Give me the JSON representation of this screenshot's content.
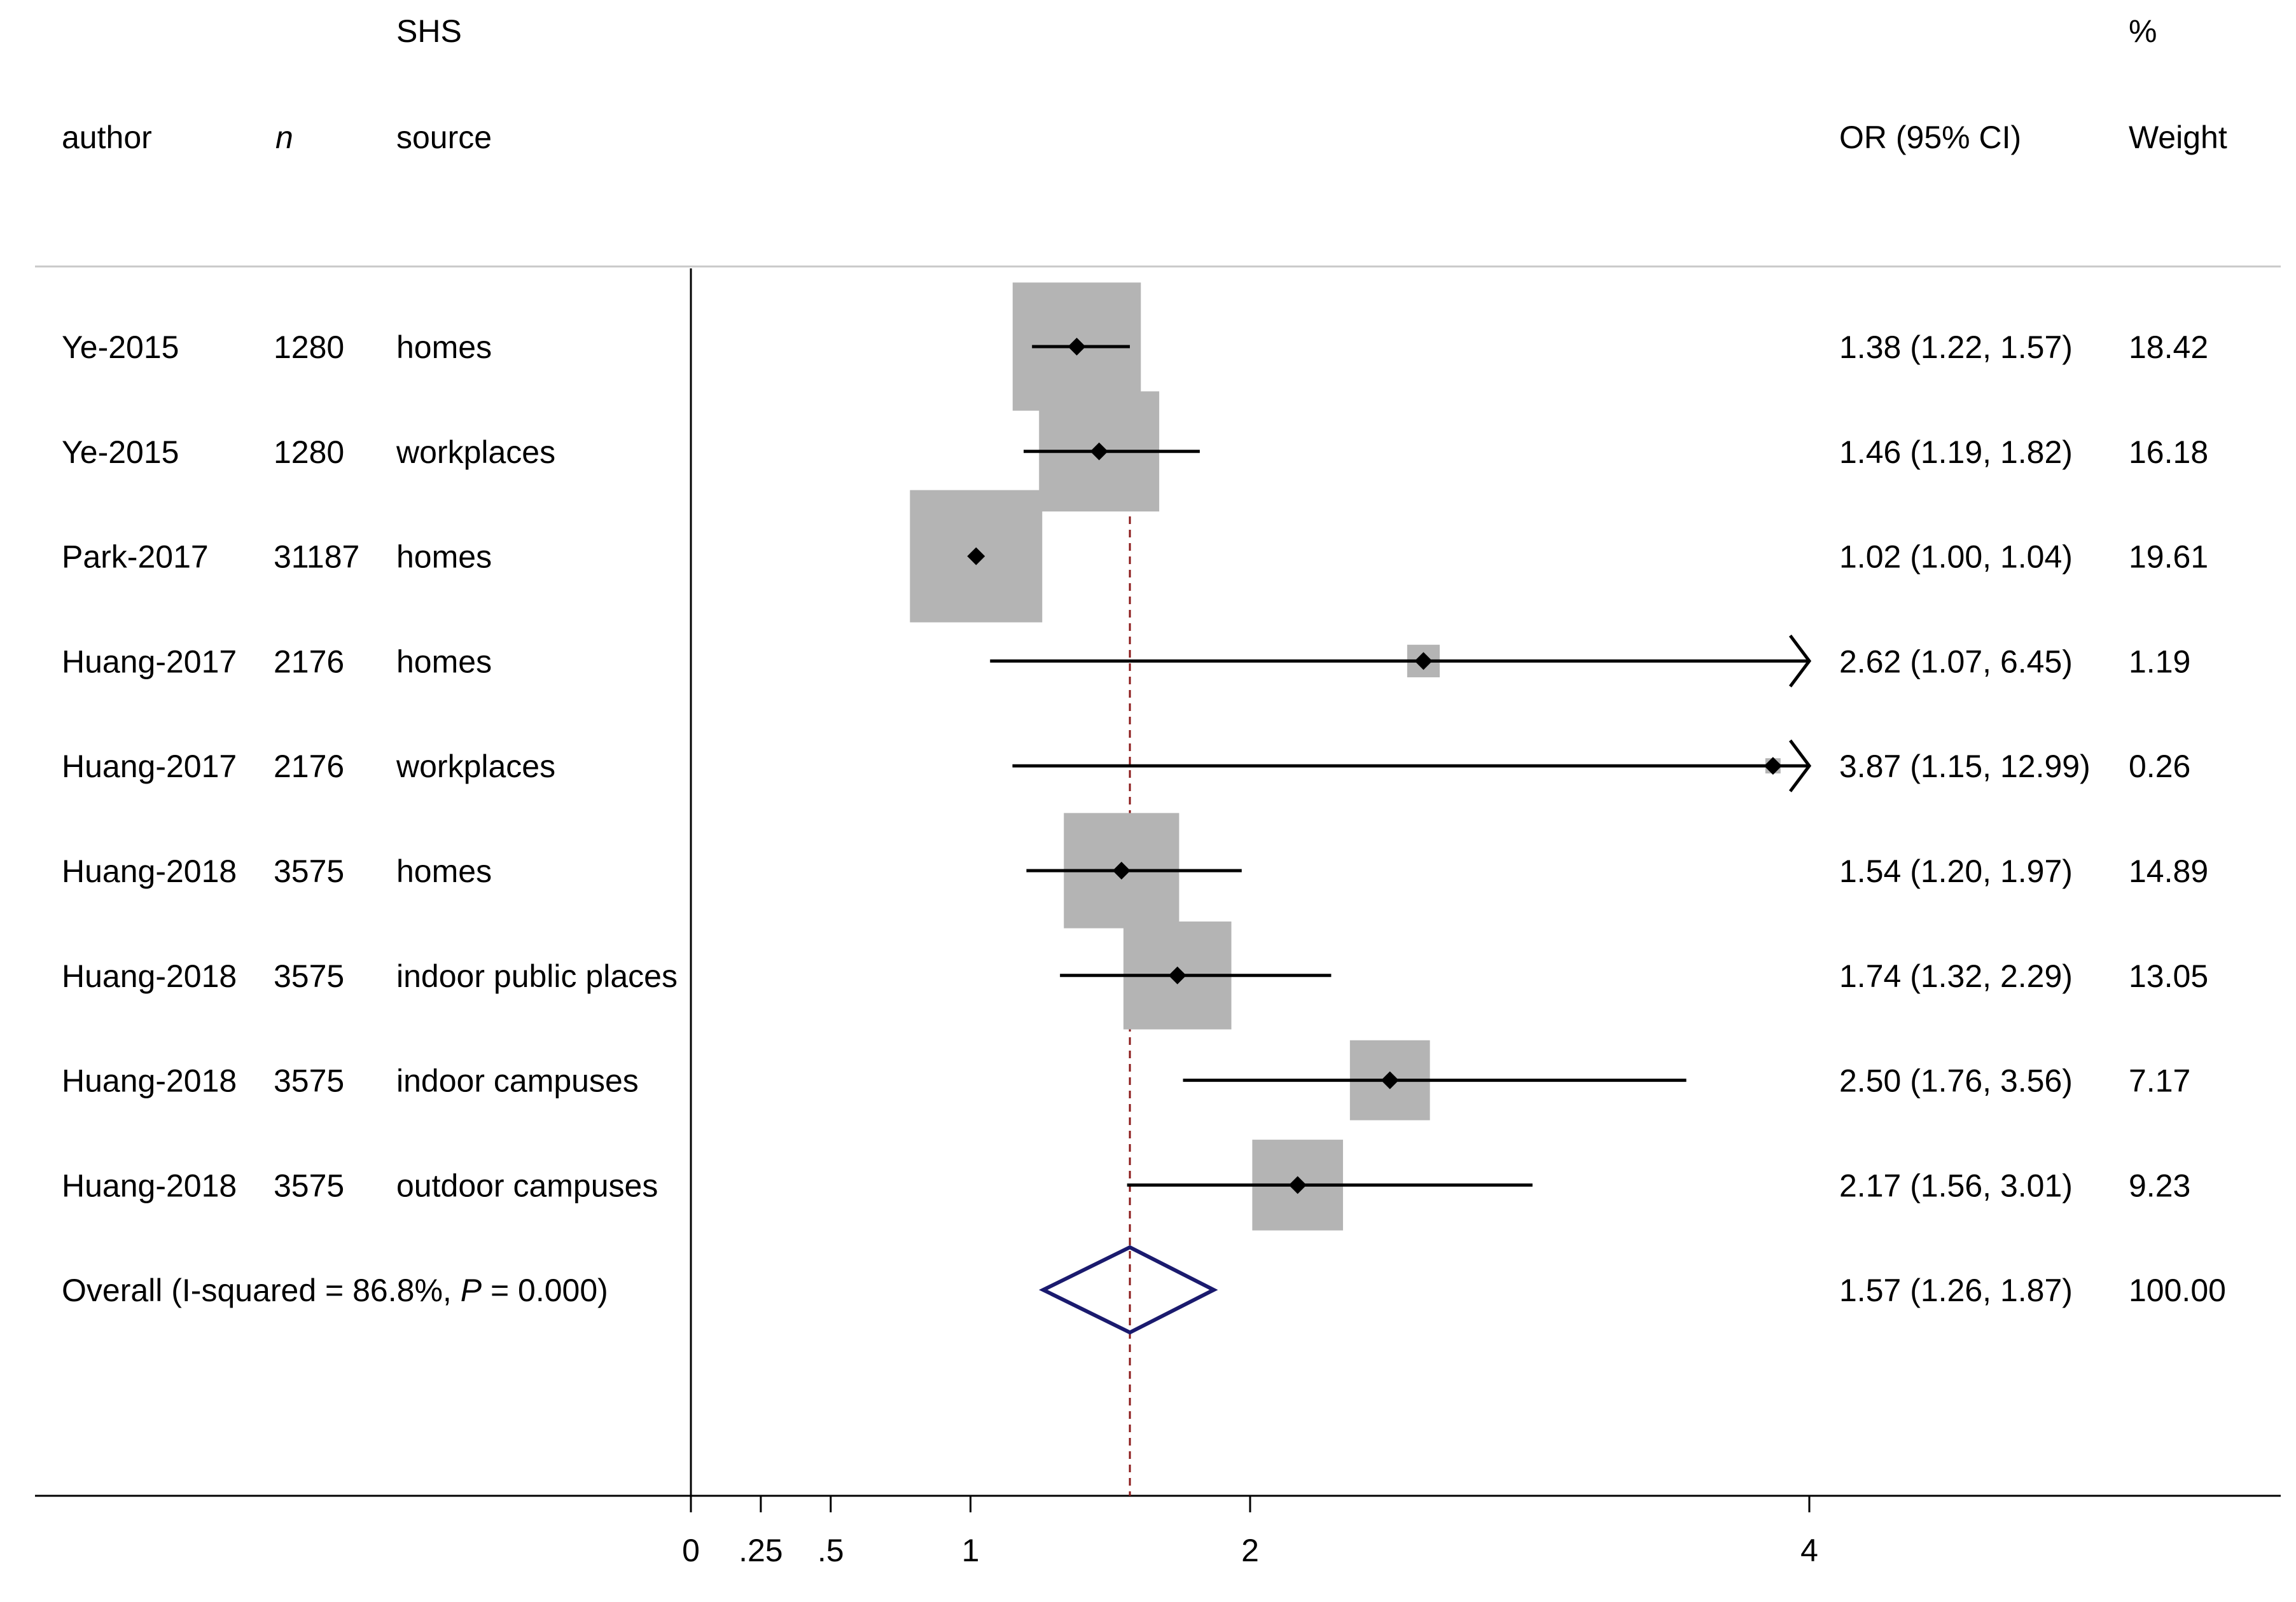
{
  "chart_data": {
    "type": "forest",
    "header": {
      "shs_top": "SHS",
      "pct_top": "%",
      "author": "author",
      "n": "n",
      "source": "source",
      "or_ci": "OR (95% CI)",
      "weight": "Weight"
    },
    "studies": [
      {
        "author": "Ye-2015",
        "n": "1280",
        "source": "homes",
        "or": 1.38,
        "lo": 1.22,
        "hi": 1.57,
        "ci_text": "1.38 (1.22, 1.57)",
        "weight": 18.42,
        "weight_text": "18.42"
      },
      {
        "author": "Ye-2015",
        "n": "1280",
        "source": "workplaces",
        "or": 1.46,
        "lo": 1.19,
        "hi": 1.82,
        "ci_text": "1.46 (1.19, 1.82)",
        "weight": 16.18,
        "weight_text": "16.18"
      },
      {
        "author": "Park-2017",
        "n": "31187",
        "source": "homes",
        "or": 1.02,
        "lo": 1.0,
        "hi": 1.04,
        "ci_text": "1.02 (1.00, 1.04)",
        "weight": 19.61,
        "weight_text": "19.61"
      },
      {
        "author": "Huang-2017",
        "n": "2176",
        "source": "homes",
        "or": 2.62,
        "lo": 1.07,
        "hi": 6.45,
        "ci_text": "2.62 (1.07, 6.45)",
        "weight": 1.19,
        "weight_text": "1.19"
      },
      {
        "author": "Huang-2017",
        "n": "2176",
        "source": "workplaces",
        "or": 3.87,
        "lo": 1.15,
        "hi": 12.99,
        "ci_text": "3.87 (1.15, 12.99)",
        "weight": 0.26,
        "weight_text": "0.26"
      },
      {
        "author": "Huang-2018",
        "n": "3575",
        "source": "homes",
        "or": 1.54,
        "lo": 1.2,
        "hi": 1.97,
        "ci_text": "1.54 (1.20, 1.97)",
        "weight": 14.89,
        "weight_text": "14.89"
      },
      {
        "author": "Huang-2018",
        "n": "3575",
        "source": "indoor public places",
        "or": 1.74,
        "lo": 1.32,
        "hi": 2.29,
        "ci_text": "1.74 (1.32, 2.29)",
        "weight": 13.05,
        "weight_text": "13.05"
      },
      {
        "author": "Huang-2018",
        "n": "3575",
        "source": "indoor campuses",
        "or": 2.5,
        "lo": 1.76,
        "hi": 3.56,
        "ci_text": "2.50 (1.76, 3.56)",
        "weight": 7.17,
        "weight_text": "7.17"
      },
      {
        "author": "Huang-2018",
        "n": "3575",
        "source": "outdoor campuses",
        "or": 2.17,
        "lo": 1.56,
        "hi": 3.01,
        "ci_text": "2.17 (1.56, 3.01)",
        "weight": 9.23,
        "weight_text": "9.23"
      }
    ],
    "overall": {
      "label_prefix": "Overall  (I-squared = 86.8%, ",
      "p_symbol": "P",
      "label_suffix": " = 0.000)",
      "or": 1.57,
      "lo": 1.26,
      "hi": 1.87,
      "ci_text": "1.57 (1.26, 1.87)",
      "weight_text": "100.00"
    },
    "x_axis": {
      "ticks": [
        {
          "value": 0,
          "label": "0"
        },
        {
          "value": 0.25,
          "label": ".25"
        },
        {
          "value": 0.5,
          "label": ".5"
        },
        {
          "value": 1,
          "label": "1"
        },
        {
          "value": 2,
          "label": "2"
        },
        {
          "value": 4,
          "label": "4"
        }
      ],
      "xlim": [
        0,
        4
      ]
    },
    "reference_line": 1.57,
    "colors": {
      "box": "#b4b4b4",
      "point": "#000000",
      "diamond": "#1a1a6e",
      "reference": "#8b1a1a",
      "axis": "#000000"
    }
  }
}
